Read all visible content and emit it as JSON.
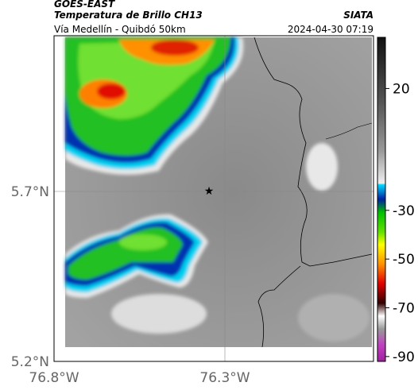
{
  "header": {
    "source": "GOES-EAST",
    "product": "Temperatura de Brillo CH13",
    "route": "Vía Medellín - Quibdó 50km",
    "agency": "SIATA",
    "timestamp": "2024-04-30 07:19"
  },
  "map": {
    "lat_labels": [
      "5.7°N",
      "5.2°N"
    ],
    "lon_labels": [
      "76.8°W",
      "76.3°W"
    ]
  },
  "colorbar": {
    "ticks": [
      20,
      -30,
      -50,
      -70,
      -90
    ],
    "range": [
      41,
      -92
    ]
  }
}
